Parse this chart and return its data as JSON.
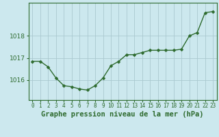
{
  "x": [
    0,
    1,
    2,
    3,
    4,
    5,
    6,
    7,
    8,
    9,
    10,
    11,
    12,
    13,
    14,
    15,
    16,
    17,
    18,
    19,
    20,
    21,
    22,
    23
  ],
  "y": [
    1016.85,
    1016.85,
    1016.6,
    1016.1,
    1015.75,
    1015.7,
    1015.6,
    1015.55,
    1015.75,
    1016.1,
    1016.65,
    1016.85,
    1017.15,
    1017.15,
    1017.25,
    1017.35,
    1017.35,
    1017.35,
    1017.35,
    1017.4,
    1018.0,
    1018.15,
    1019.05,
    1019.1
  ],
  "line_color": "#2d6a2d",
  "marker": "D",
  "marker_size": 2.5,
  "linewidth": 1.0,
  "bg_color": "#cce8ee",
  "grid_color": "#aac8d0",
  "title": "Graphe pression niveau de la mer (hPa)",
  "ylabel_fontsize": 6.5,
  "title_fontsize": 7.5,
  "ylim": [
    1015.1,
    1019.5
  ],
  "yticks": [
    1016,
    1017,
    1018
  ],
  "xtick_labels": [
    "0",
    "1",
    "2",
    "3",
    "4",
    "5",
    "6",
    "7",
    "8",
    "9",
    "10",
    "11",
    "12",
    "13",
    "14",
    "15",
    "16",
    "17",
    "18",
    "19",
    "20",
    "21",
    "22",
    "23"
  ],
  "tick_color": "#2d6a2d",
  "spine_color": "#2d6a2d"
}
